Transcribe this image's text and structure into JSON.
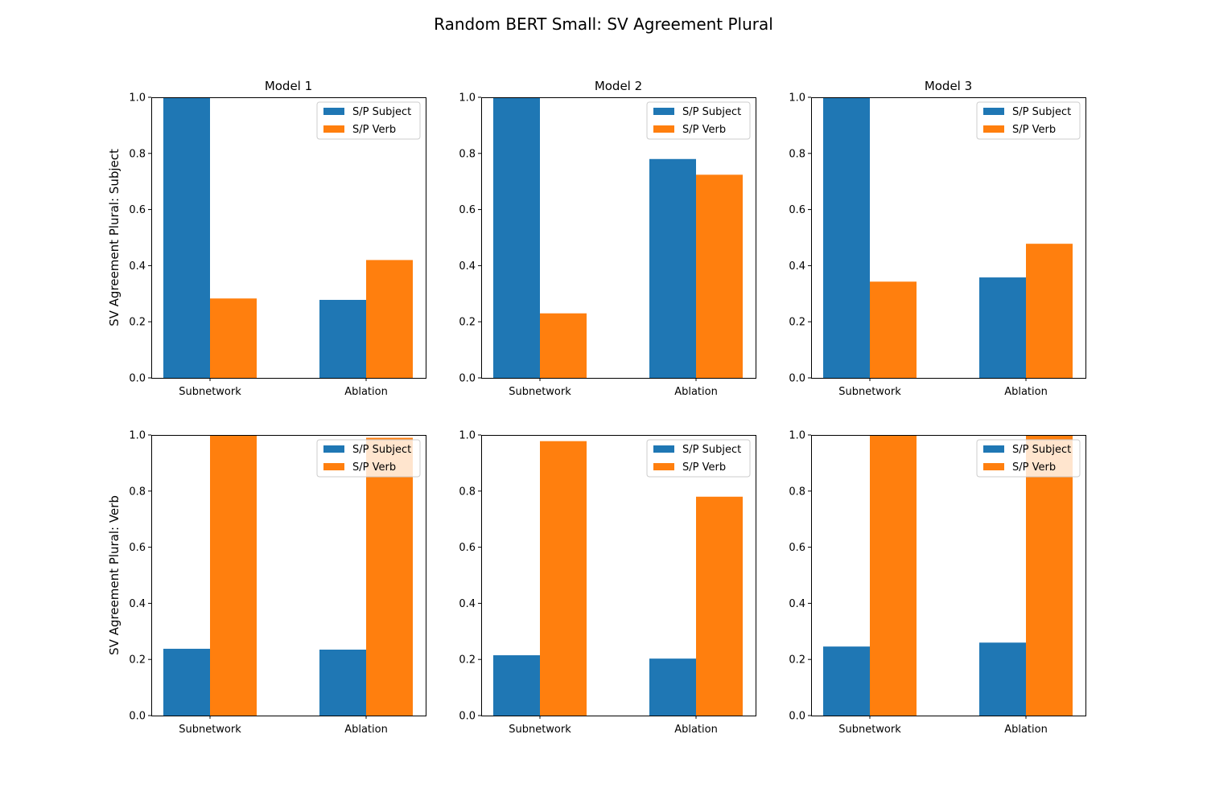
{
  "figure": {
    "title": "Random BERT Small: SV Agreement Plural"
  },
  "colors": {
    "subject": "#1f77b4",
    "verb": "#ff7f0e"
  },
  "chart_data": [
    {
      "type": "bar",
      "title": "Model 1",
      "ylabel": "SV Agreement Plural: Subject",
      "categories": [
        "Subnetwork",
        "Ablation"
      ],
      "ylim": [
        0,
        1
      ],
      "yticks": [
        "0.0",
        "0.2",
        "0.4",
        "0.6",
        "0.8",
        "1.0"
      ],
      "legend": "top-right",
      "series": [
        {
          "name": "S/P Subject",
          "values": [
            1.0,
            0.278
          ]
        },
        {
          "name": "S/P Verb",
          "values": [
            0.283,
            0.42
          ]
        }
      ]
    },
    {
      "type": "bar",
      "title": "Model 2",
      "ylabel": "",
      "categories": [
        "Subnetwork",
        "Ablation"
      ],
      "ylim": [
        0,
        1
      ],
      "yticks": [
        "0.0",
        "0.2",
        "0.4",
        "0.6",
        "0.8",
        "1.0"
      ],
      "legend": "top-right",
      "series": [
        {
          "name": "S/P Subject",
          "values": [
            1.0,
            0.78
          ]
        },
        {
          "name": "S/P Verb",
          "values": [
            0.23,
            0.724
          ]
        }
      ]
    },
    {
      "type": "bar",
      "title": "Model 3",
      "ylabel": "",
      "categories": [
        "Subnetwork",
        "Ablation"
      ],
      "ylim": [
        0,
        1
      ],
      "yticks": [
        "0.0",
        "0.2",
        "0.4",
        "0.6",
        "0.8",
        "1.0"
      ],
      "legend": "top-right",
      "series": [
        {
          "name": "S/P Subject",
          "values": [
            1.0,
            0.358
          ]
        },
        {
          "name": "S/P Verb",
          "values": [
            0.343,
            0.478
          ]
        }
      ]
    },
    {
      "type": "bar",
      "title": "",
      "ylabel": "SV Agreement Plural: Verb",
      "categories": [
        "Subnetwork",
        "Ablation"
      ],
      "ylim": [
        0,
        1
      ],
      "yticks": [
        "0.0",
        "0.2",
        "0.4",
        "0.6",
        "0.8",
        "1.0"
      ],
      "legend": "top-right",
      "series": [
        {
          "name": "S/P Subject",
          "values": [
            0.238,
            0.235
          ]
        },
        {
          "name": "S/P Verb",
          "values": [
            1.0,
            0.99
          ]
        }
      ]
    },
    {
      "type": "bar",
      "title": "",
      "ylabel": "",
      "categories": [
        "Subnetwork",
        "Ablation"
      ],
      "ylim": [
        0,
        1
      ],
      "yticks": [
        "0.0",
        "0.2",
        "0.4",
        "0.6",
        "0.8",
        "1.0"
      ],
      "legend": "top-right",
      "series": [
        {
          "name": "S/P Subject",
          "values": [
            0.215,
            0.203
          ]
        },
        {
          "name": "S/P Verb",
          "values": [
            0.978,
            0.78
          ]
        }
      ]
    },
    {
      "type": "bar",
      "title": "",
      "ylabel": "",
      "categories": [
        "Subnetwork",
        "Ablation"
      ],
      "ylim": [
        0,
        1
      ],
      "yticks": [
        "0.0",
        "0.2",
        "0.4",
        "0.6",
        "0.8",
        "1.0"
      ],
      "legend": "top-right",
      "series": [
        {
          "name": "S/P Subject",
          "values": [
            0.246,
            0.26
          ]
        },
        {
          "name": "S/P Verb",
          "values": [
            1.0,
            1.0
          ]
        }
      ]
    }
  ]
}
